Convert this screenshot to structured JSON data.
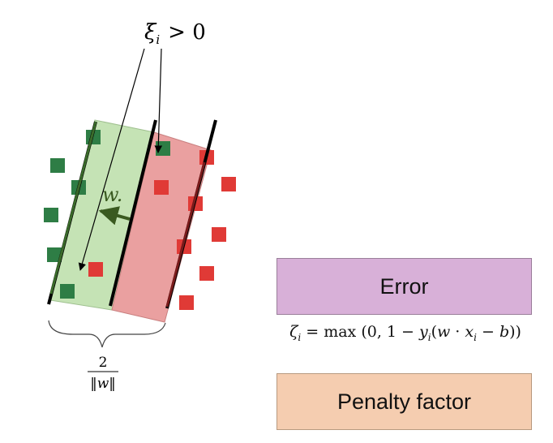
{
  "diagram": {
    "xi_label_main": "ξ",
    "xi_label_sub": "i",
    "xi_label_rel": "> 0",
    "w_label": "w.",
    "margin_numerator": "2",
    "margin_denominator": "‖w‖"
  },
  "error_box": {
    "label": "Error",
    "color": "#d8b0d8"
  },
  "penalty_box": {
    "label": "Penalty factor",
    "color": "#f5cdb0"
  },
  "formula": {
    "zeta": "ζ",
    "sub_i": "i",
    "eq": " = max (0, 1 − ",
    "y": "y",
    "rest1": "(",
    "w": "w",
    "dot": " · ",
    "x": "x",
    "rest2": " − ",
    "b": "b",
    "close": "))"
  },
  "colors": {
    "green_band": "#c5e3b5",
    "red_band": "#eaa0a0",
    "green_square": "#2e7d45",
    "red_square": "#e03a36",
    "green_arrow": "#3a5a20"
  }
}
